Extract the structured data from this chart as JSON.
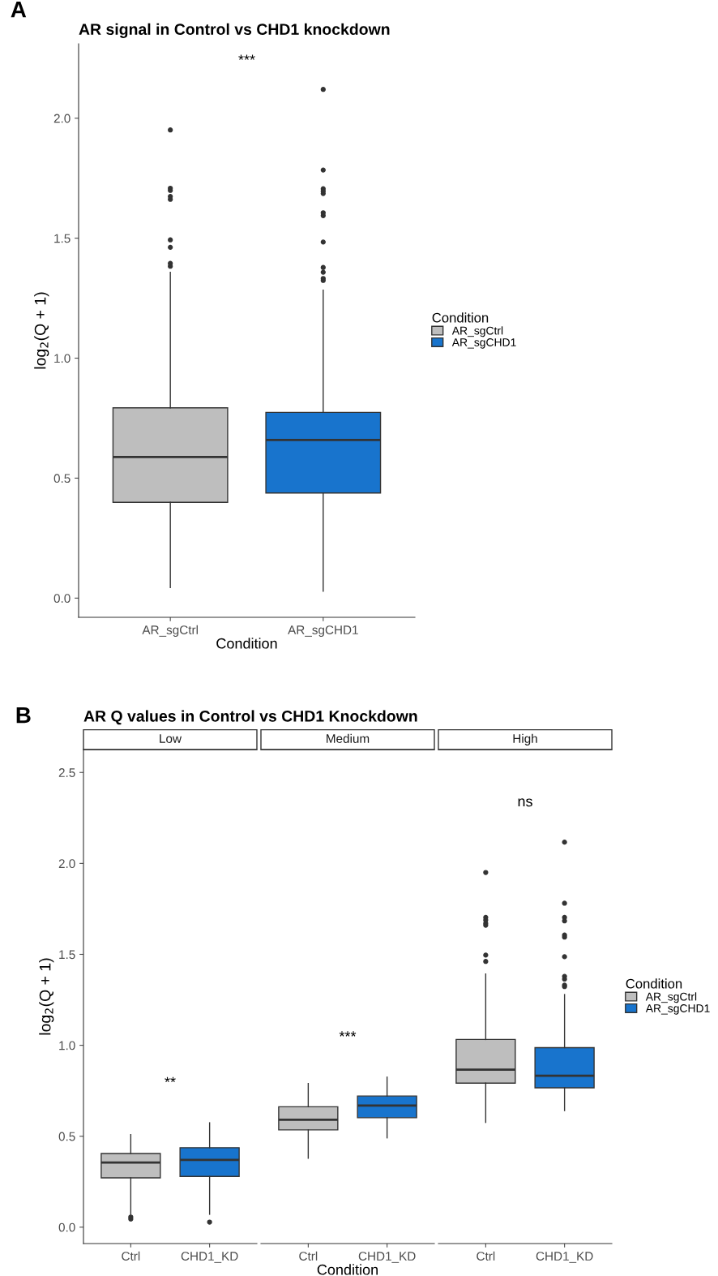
{
  "chart_data": [
    {
      "type": "box",
      "title": "AR signal in Control vs CHD1 knockdown",
      "xlabel": "Condition",
      "ylabel": "log$_{2}$(Q + 1)",
      "legend_title": "Condition",
      "legend": "right",
      "annotations": [
        "A",
        "***"
      ],
      "categories": [
        "AR_sgCtrl",
        "AR_sgCHD1"
      ],
      "series": [
        {
          "name": "AR_sgCtrl",
          "color": "#bebebe",
          "boxes": [
            {
              "low": 0.044,
              "q1": 0.399,
              "median": 0.588,
              "q3": 0.793,
              "high": 1.358,
              "outliers": [
                1.951,
                1.708,
                1.699,
                1.674,
                1.662,
                1.493,
                1.462,
                1.395,
                1.383
              ]
            },
            null
          ]
        },
        {
          "name": "AR_sgCHD1",
          "color": "#1874cd",
          "boxes": [
            null,
            {
              "low": 0.029,
              "q1": 0.438,
              "median": 0.659,
              "q3": 0.774,
              "high": 1.283,
              "outliers": [
                2.12,
                1.784,
                1.706,
                1.696,
                1.686,
                1.606,
                1.594,
                1.484,
                1.378,
                1.358,
                1.332,
                1.324
              ]
            }
          ]
        }
      ],
      "ylim": [
        -0.08,
        2.31
      ],
      "yticks": [
        {
          "value": 0,
          "label": "0.0"
        },
        {
          "value": 0.5,
          "label": "0.5"
        },
        {
          "value": 1,
          "label": "1.0"
        },
        {
          "value": 1.5,
          "label": "1.5"
        },
        {
          "value": 2,
          "label": "2.0"
        }
      ]
    },
    {
      "type": "box",
      "title": "AR Q values in Control vs CHD1 Knockdown",
      "subtitle": "Low",
      "ylabel": "log$_{2}$(Q + 1)",
      "annotations": [
        "B",
        "**"
      ],
      "categories": [
        "Ctrl",
        "CHD1_KD"
      ],
      "series": [
        {
          "color": "#bebebe",
          "boxes": [
            {
              "low": 0.07,
              "q1": 0.271,
              "median": 0.355,
              "q3": 0.405,
              "high": 0.509,
              "outliers": [
                0.056,
                0.045
              ]
            },
            null
          ]
        },
        {
          "color": "#1874cd",
          "boxes": [
            null,
            {
              "low": 0.071,
              "q1": 0.279,
              "median": 0.37,
              "q3": 0.437,
              "high": 0.574,
              "outliers": [
                0.028
              ]
            }
          ]
        }
      ],
      "ylim": [
        -0.09,
        2.626
      ],
      "yticks": [
        {
          "value": 0,
          "label": "0.0"
        },
        {
          "value": 0.5,
          "label": "0.5"
        },
        {
          "value": 1,
          "label": "1.0"
        },
        {
          "value": 1.5,
          "label": "1.5"
        },
        {
          "value": 2,
          "label": "2.0"
        },
        {
          "value": 2.5,
          "label": "2.5"
        }
      ]
    },
    {
      "type": "box",
      "subtitle": "Medium",
      "xlabel": "Condition",
      "annotations": [
        "***"
      ],
      "tick_labels": "x",
      "categories": [
        "Ctrl",
        "CHD1_KD"
      ],
      "series": [
        {
          "color": "#bebebe",
          "boxes": [
            {
              "low": 0.379,
              "q1": 0.535,
              "median": 0.591,
              "q3": 0.662,
              "high": 0.79
            },
            null
          ]
        },
        {
          "color": "#1874cd",
          "boxes": [
            null,
            {
              "low": 0.491,
              "q1": 0.602,
              "median": 0.669,
              "q3": 0.721,
              "high": 0.825
            }
          ]
        }
      ],
      "ylim": [
        -0.09,
        2.626
      ]
    },
    {
      "type": "box",
      "subtitle": "High",
      "legend_title": "Condition",
      "legend": "right",
      "annotations": [
        "ns"
      ],
      "tick_labels": "x",
      "categories": [
        "Ctrl",
        "CHD1_KD"
      ],
      "series": [
        {
          "name": "AR_sgCtrl",
          "color": "#bebebe",
          "boxes": [
            {
              "low": 0.576,
              "q1": 0.792,
              "median": 0.866,
              "q3": 1.032,
              "high": 1.392,
              "outliers": [
                1.95,
                1.703,
                1.688,
                1.671,
                1.66,
                1.496,
                1.461
              ]
            },
            null
          ]
        },
        {
          "name": "AR_sgCHD1",
          "color": "#1874cd",
          "boxes": [
            null,
            {
              "low": 0.641,
              "q1": 0.766,
              "median": 0.833,
              "q3": 0.987,
              "high": 1.279,
              "outliers": [
                2.117,
                1.781,
                1.703,
                1.684,
                1.606,
                1.595,
                1.487,
                1.379,
                1.364,
                1.331,
                1.323
              ]
            }
          ]
        }
      ],
      "ylim": [
        -0.09,
        2.626
      ]
    }
  ]
}
